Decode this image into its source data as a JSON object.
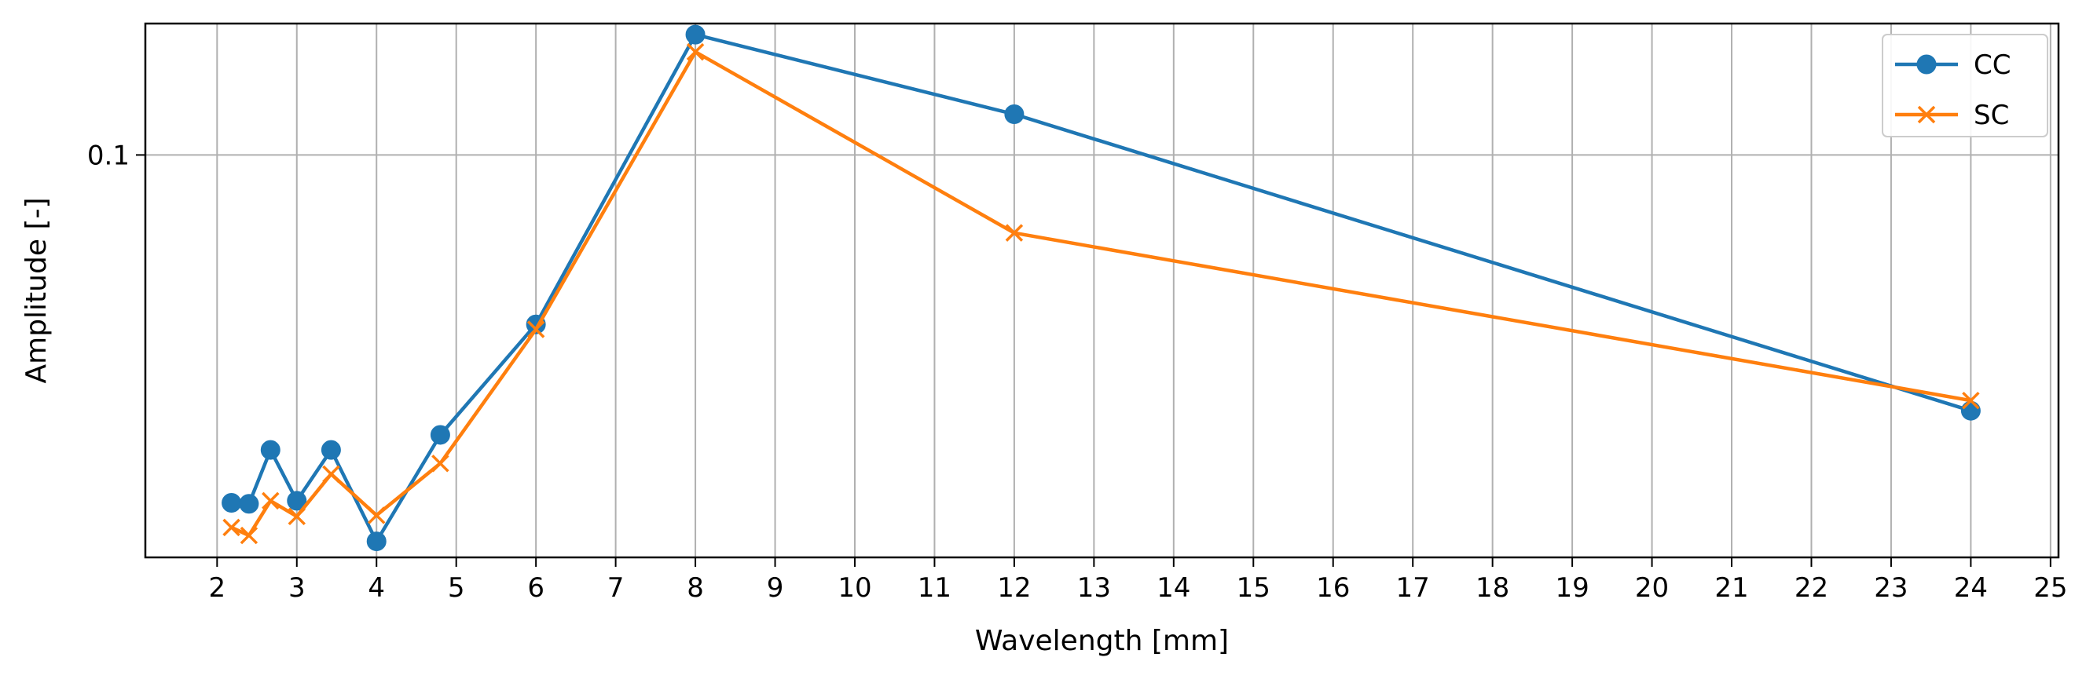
{
  "chart_data": {
    "type": "line",
    "xlabel": "Wavelength [mm]",
    "ylabel": "Amplitude [-]",
    "xlim": [
      1.1,
      25.1
    ],
    "ylim": [
      0.019,
      0.172
    ],
    "yscale": "log",
    "xticks": [
      2,
      3,
      4,
      5,
      6,
      7,
      8,
      9,
      10,
      11,
      12,
      13,
      14,
      15,
      16,
      17,
      18,
      19,
      20,
      21,
      22,
      23,
      24,
      25
    ],
    "yticks": [
      {
        "value": 0.1,
        "label": "0.1"
      }
    ],
    "grid": true,
    "legend_position": "top-right",
    "series": [
      {
        "name": "CC",
        "color": "#1f77b4",
        "marker": "circle",
        "x": [
          2.18,
          2.4,
          2.67,
          3.0,
          3.43,
          4.0,
          4.8,
          6.0,
          8.0,
          12.0,
          24.0
        ],
        "y": [
          0.0238,
          0.0237,
          0.0296,
          0.024,
          0.0296,
          0.0203,
          0.0315,
          0.0497,
          0.1643,
          0.1183,
          0.0348
        ]
      },
      {
        "name": "SC",
        "color": "#ff7f0e",
        "marker": "x",
        "x": [
          2.18,
          2.4,
          2.67,
          3.0,
          3.43,
          4.0,
          4.8,
          6.0,
          8.0,
          12.0,
          24.0
        ],
        "y": [
          0.0215,
          0.0208,
          0.024,
          0.0225,
          0.0268,
          0.0226,
          0.028,
          0.0487,
          0.153,
          0.0725,
          0.0363
        ]
      }
    ]
  }
}
